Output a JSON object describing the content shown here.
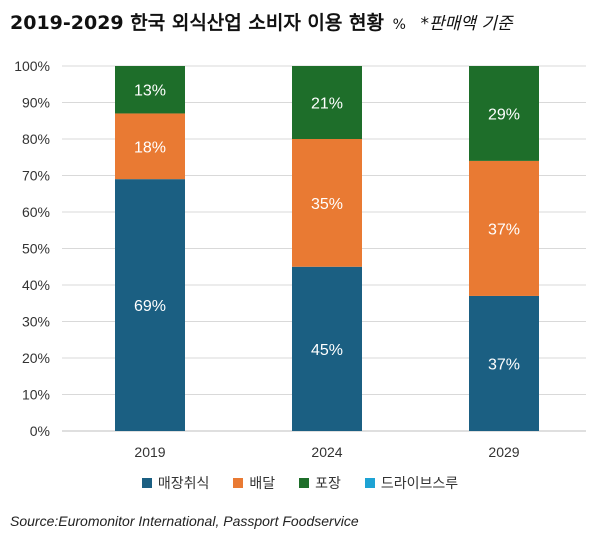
{
  "header": {
    "title": "2019-2029 한국 외식산업 소비자 이용 현황",
    "unit": "%",
    "note": "*판매액 기준"
  },
  "source": "Source:Euromonitor International, Passport Foodservice",
  "chart_data": {
    "type": "bar",
    "stacked": true,
    "title": "2019-2029 한국 외식산업 소비자 이용 현황",
    "xlabel": "",
    "ylabel": "",
    "ylim": [
      0,
      100
    ],
    "y_ticks": [
      "0%",
      "10%",
      "20%",
      "30%",
      "40%",
      "50%",
      "60%",
      "70%",
      "80%",
      "90%",
      "100%"
    ],
    "categories": [
      "2019",
      "2024",
      "2029"
    ],
    "series": [
      {
        "name": "매장취식",
        "color": "#1b5f82",
        "values": [
          69,
          45,
          37
        ],
        "labels": [
          "69%",
          "45%",
          "37%"
        ]
      },
      {
        "name": "배달",
        "color": "#e97a33",
        "values": [
          18,
          35,
          37
        ],
        "labels": [
          "18%",
          "35%",
          "37%"
        ]
      },
      {
        "name": "포장",
        "color": "#1e6e2a",
        "values": [
          13,
          21,
          29
        ],
        "labels": [
          "13%",
          "21%",
          "29%"
        ]
      },
      {
        "name": "드라이브스루",
        "color": "#1ea3d4",
        "values": [
          0.5,
          0,
          0
        ],
        "labels": [
          "",
          "",
          ""
        ]
      }
    ],
    "legend_position": "bottom",
    "grid": true
  }
}
